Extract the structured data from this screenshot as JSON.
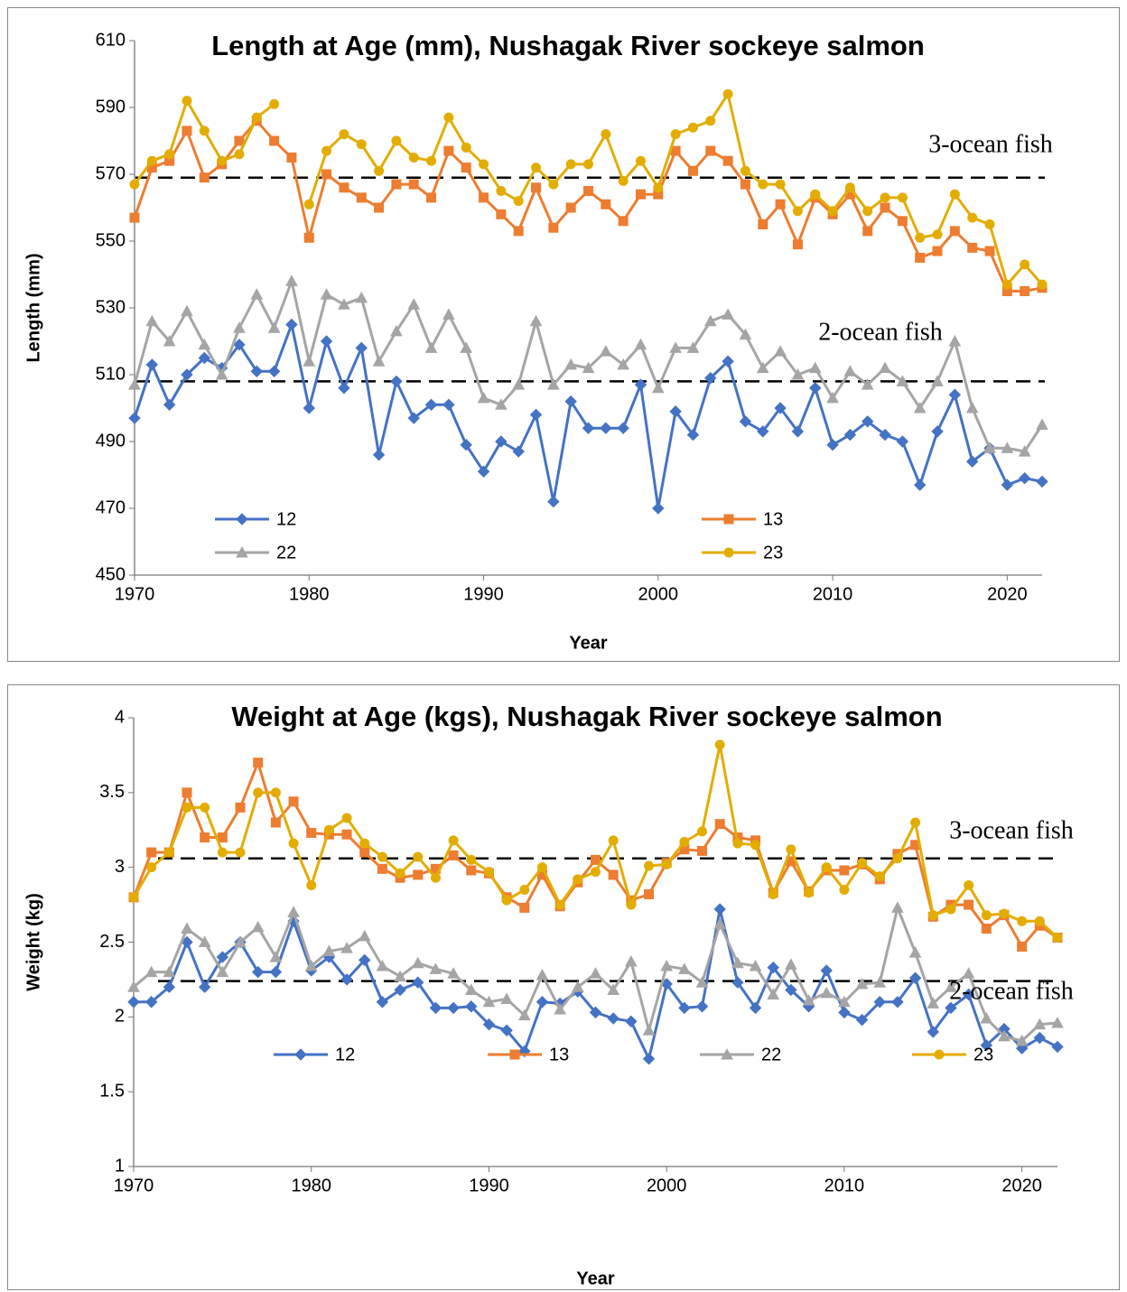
{
  "chart_data": [
    {
      "type": "line",
      "title": "Length at Age (mm), Nushagak River sockeye salmon",
      "x_label": "Year",
      "y_label": "Length (mm)",
      "x": [
        1970,
        1971,
        1972,
        1973,
        1974,
        1975,
        1976,
        1977,
        1978,
        1979,
        1980,
        1981,
        1982,
        1983,
        1984,
        1985,
        1986,
        1987,
        1988,
        1989,
        1990,
        1991,
        1992,
        1993,
        1994,
        1995,
        1996,
        1997,
        1998,
        1999,
        2000,
        2001,
        2002,
        2003,
        2004,
        2005,
        2006,
        2007,
        2008,
        2009,
        2010,
        2011,
        2012,
        2013,
        2014,
        2015,
        2016,
        2017,
        2018,
        2019,
        2020,
        2021,
        2022
      ],
      "xlim": [
        1970,
        2022
      ],
      "xticks": [
        1970,
        1980,
        1990,
        2000,
        2010,
        2020
      ],
      "ylim": [
        450,
        610
      ],
      "yticks": [
        450,
        470,
        490,
        510,
        530,
        550,
        570,
        590,
        610
      ],
      "grid": false,
      "series": [
        {
          "name": "12",
          "color": "#4472c4",
          "marker": "diamond",
          "values": [
            497,
            513,
            501,
            510,
            515,
            512,
            519,
            511,
            511,
            525,
            500,
            520,
            506,
            518,
            486,
            508,
            497,
            501,
            501,
            489,
            481,
            490,
            487,
            498,
            472,
            502,
            494,
            494,
            494,
            507,
            470,
            499,
            492,
            509,
            514,
            496,
            493,
            500,
            493,
            506,
            489,
            492,
            496,
            492,
            490,
            477,
            493,
            504,
            484,
            488,
            477,
            479,
            478
          ]
        },
        {
          "name": "13",
          "color": "#ed7d31",
          "marker": "square",
          "values": [
            557,
            572,
            574,
            583,
            569,
            573,
            580,
            586,
            580,
            575,
            551,
            570,
            566,
            563,
            560,
            567,
            567,
            563,
            577,
            572,
            563,
            558,
            553,
            566,
            554,
            560,
            565,
            561,
            556,
            564,
            564,
            577,
            571,
            577,
            574,
            567,
            555,
            561,
            549,
            563,
            558,
            564,
            553,
            560,
            556,
            545,
            547,
            553,
            548,
            547,
            535,
            535,
            536
          ]
        },
        {
          "name": "22",
          "color": "#a5a5a5",
          "marker": "triangle",
          "values": [
            507,
            526,
            520,
            529,
            519,
            510,
            524,
            534,
            524,
            538,
            514,
            534,
            531,
            533,
            514,
            523,
            531,
            518,
            528,
            518,
            503,
            501,
            507,
            526,
            507,
            513,
            512,
            517,
            513,
            519,
            506,
            518,
            518,
            526,
            528,
            522,
            512,
            517,
            510,
            512,
            503,
            511,
            507,
            512,
            508,
            500,
            508,
            520,
            500,
            488,
            488,
            487,
            495
          ]
        },
        {
          "name": "23",
          "color": "#e3ad00",
          "marker": "circle",
          "values": [
            567,
            574,
            576,
            592,
            583,
            574,
            576,
            587,
            591,
            null,
            561,
            577,
            582,
            579,
            571,
            580,
            575,
            574,
            587,
            578,
            573,
            565,
            562,
            572,
            567,
            573,
            573,
            582,
            568,
            574,
            566,
            582,
            584,
            586,
            594,
            571,
            567,
            567,
            559,
            564,
            559,
            566,
            559,
            563,
            563,
            551,
            552,
            564,
            557,
            555,
            537,
            543,
            537
          ]
        }
      ],
      "reference_lines": [
        {
          "label": "3-ocean fish",
          "value": 569
        },
        {
          "label": "2-ocean fish",
          "value": 508
        }
      ]
    },
    {
      "type": "line",
      "title": "Weight at Age (kgs), Nushagak River sockeye salmon",
      "x_label": "Year",
      "y_label": "Weight (kg)",
      "x": [
        1970,
        1971,
        1972,
        1973,
        1974,
        1975,
        1976,
        1977,
        1978,
        1979,
        1980,
        1981,
        1982,
        1983,
        1984,
        1985,
        1986,
        1987,
        1988,
        1989,
        1990,
        1991,
        1992,
        1993,
        1994,
        1995,
        1996,
        1997,
        1998,
        1999,
        2000,
        2001,
        2002,
        2003,
        2004,
        2005,
        2006,
        2007,
        2008,
        2009,
        2010,
        2011,
        2012,
        2013,
        2014,
        2015,
        2016,
        2017,
        2018,
        2019,
        2020,
        2021,
        2022
      ],
      "xlim": [
        1970,
        2022
      ],
      "xticks": [
        1970,
        1980,
        1990,
        2000,
        2010,
        2020
      ],
      "ylim": [
        1,
        4
      ],
      "yticks": [
        1,
        1.5,
        2,
        2.5,
        3,
        3.5,
        4
      ],
      "grid": false,
      "series": [
        {
          "name": "12",
          "color": "#4472c4",
          "marker": "diamond",
          "values": [
            2.1,
            2.1,
            2.2,
            2.5,
            2.2,
            2.4,
            2.5,
            2.3,
            2.3,
            2.64,
            2.31,
            2.4,
            2.25,
            2.38,
            2.1,
            2.18,
            2.23,
            2.06,
            2.06,
            2.07,
            1.95,
            1.91,
            1.77,
            2.1,
            2.09,
            2.17,
            2.03,
            1.99,
            1.97,
            1.72,
            2.22,
            2.06,
            2.07,
            2.72,
            2.23,
            2.06,
            2.33,
            2.18,
            2.07,
            2.31,
            2.03,
            1.98,
            2.1,
            2.1,
            2.26,
            1.9,
            2.06,
            2.15,
            1.81,
            1.92,
            1.79,
            1.86,
            1.8
          ]
        },
        {
          "name": "13",
          "color": "#ed7d31",
          "marker": "square",
          "values": [
            2.8,
            3.1,
            3.1,
            3.5,
            3.2,
            3.2,
            3.4,
            3.7,
            3.3,
            3.44,
            3.23,
            3.22,
            3.22,
            3.1,
            2.99,
            2.93,
            2.95,
            2.99,
            3.08,
            2.98,
            2.96,
            2.8,
            2.73,
            2.95,
            2.74,
            2.9,
            3.05,
            2.95,
            2.78,
            2.82,
            3.03,
            3.12,
            3.11,
            3.29,
            3.2,
            3.18,
            2.83,
            3.04,
            2.84,
            2.98,
            2.98,
            3.02,
            2.92,
            3.09,
            3.15,
            2.67,
            2.75,
            2.75,
            2.59,
            2.68,
            2.47,
            2.61,
            2.53
          ]
        },
        {
          "name": "22",
          "color": "#a5a5a5",
          "marker": "triangle",
          "values": [
            2.2,
            2.3,
            2.3,
            2.59,
            2.5,
            2.3,
            2.5,
            2.6,
            2.4,
            2.7,
            2.34,
            2.44,
            2.46,
            2.54,
            2.34,
            2.27,
            2.36,
            2.32,
            2.29,
            2.18,
            2.1,
            2.12,
            2.01,
            2.28,
            2.05,
            2.2,
            2.29,
            2.18,
            2.37,
            1.91,
            2.34,
            2.32,
            2.23,
            2.62,
            2.36,
            2.34,
            2.15,
            2.35,
            2.11,
            2.16,
            2.1,
            2.22,
            2.23,
            2.73,
            2.43,
            2.09,
            2.2,
            2.29,
            1.99,
            1.87,
            1.84,
            1.95,
            1.96
          ]
        },
        {
          "name": "23",
          "color": "#e3ad00",
          "marker": "circle",
          "values": [
            2.8,
            3.0,
            3.1,
            3.4,
            3.4,
            3.1,
            3.1,
            3.5,
            3.5,
            3.16,
            2.88,
            3.25,
            3.33,
            3.16,
            3.07,
            2.96,
            3.07,
            2.93,
            3.18,
            3.05,
            2.97,
            2.78,
            2.85,
            3.0,
            2.75,
            2.92,
            2.97,
            3.18,
            2.75,
            3.01,
            3.02,
            3.17,
            3.24,
            3.82,
            3.16,
            3.15,
            2.82,
            3.12,
            2.83,
            3.0,
            2.85,
            3.03,
            2.94,
            3.06,
            3.3,
            2.68,
            2.72,
            2.88,
            2.68,
            2.69,
            2.64,
            2.64,
            2.53
          ]
        }
      ],
      "reference_lines": [
        {
          "label": "3-ocean fish",
          "value": 3.06
        },
        {
          "label": "2-ocean fish",
          "value": 2.24
        }
      ]
    }
  ]
}
